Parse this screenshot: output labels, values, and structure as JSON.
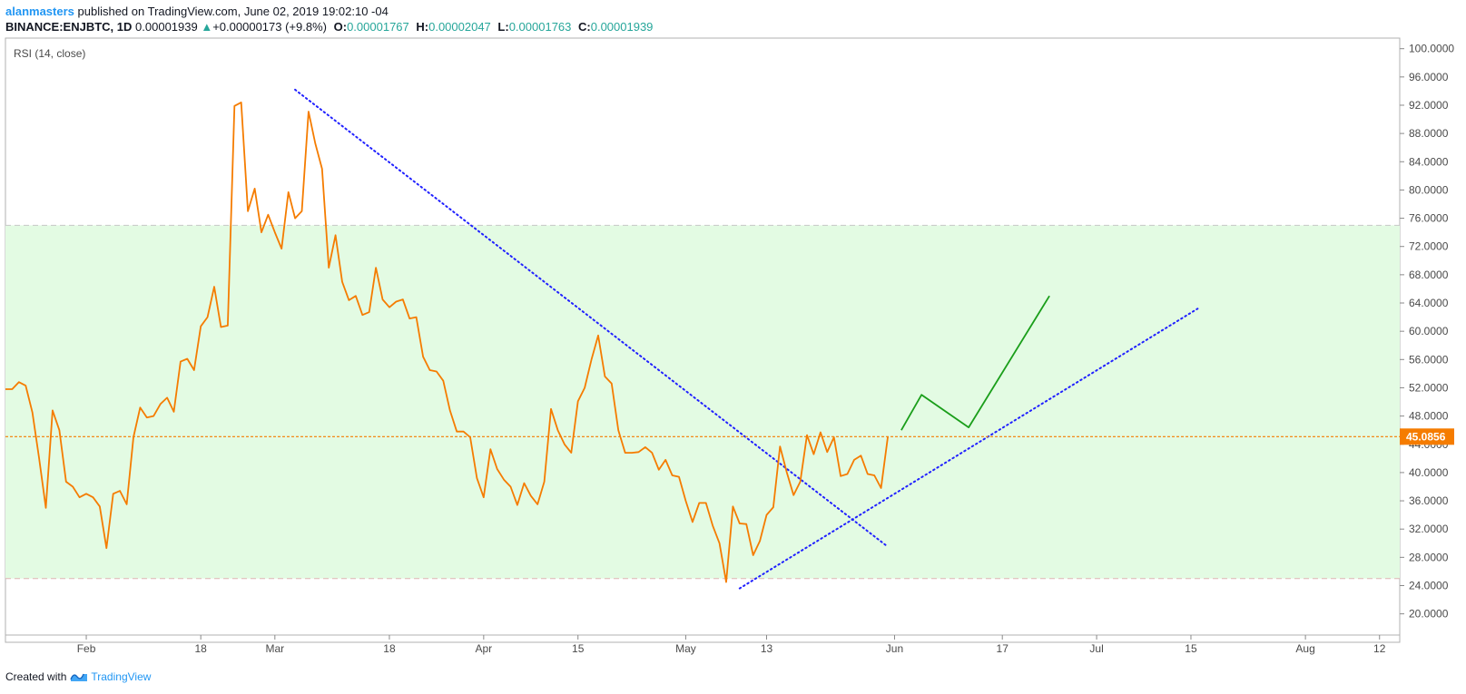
{
  "header": {
    "author": "alanmasters",
    "published": " published on TradingView.com, June 02, 2019 19:02:10 -04",
    "symbol": "BINANCE:ENJBTC, 1D",
    "price": "0.00001939",
    "change": "+0.00000173 (+9.8%)",
    "o_label": "O:",
    "o_value": "0.00001767",
    "h_label": "H:",
    "h_value": "0.00002047",
    "l_label": "L:",
    "l_value": "0.00001763",
    "c_label": "C:",
    "c_value": "0.00001939"
  },
  "footer": {
    "created_with": "Created with",
    "brand": "TradingView"
  },
  "colors": {
    "rsi_line": "#f57c00",
    "band_fill": "#e3fbe3",
    "band_border": "#c8c8c8",
    "trendline": "#2020ff",
    "projection": "#1a9e1a",
    "current_tag": "#f57c00",
    "up": "#26a69a"
  },
  "chart_data": {
    "type": "line",
    "indicator_label": "RSI (14, close)",
    "ylim": [
      17,
      101.5
    ],
    "y_ticks": [
      "100.0000",
      "96.0000",
      "92.0000",
      "88.0000",
      "84.0000",
      "80.0000",
      "76.0000",
      "72.0000",
      "68.0000",
      "64.0000",
      "60.0000",
      "56.0000",
      "52.0000",
      "48.0000",
      "44.0000",
      "40.0000",
      "36.0000",
      "32.0000",
      "28.0000",
      "24.0000",
      "20.0000"
    ],
    "x_range": [
      "2019-01-20",
      "2019-08-15"
    ],
    "x_ticks": [
      {
        "date": "2019-02-01",
        "label": "Feb"
      },
      {
        "date": "2019-02-18",
        "label": "18"
      },
      {
        "date": "2019-03-01",
        "label": "Mar"
      },
      {
        "date": "2019-03-18",
        "label": "18"
      },
      {
        "date": "2019-04-01",
        "label": "Apr"
      },
      {
        "date": "2019-04-15",
        "label": "15"
      },
      {
        "date": "2019-05-01",
        "label": "May"
      },
      {
        "date": "2019-05-13",
        "label": "13"
      },
      {
        "date": "2019-06-01",
        "label": "Jun"
      },
      {
        "date": "2019-06-17",
        "label": "17"
      },
      {
        "date": "2019-07-01",
        "label": "Jul"
      },
      {
        "date": "2019-07-15",
        "label": "15"
      },
      {
        "date": "2019-08-01",
        "label": "Aug"
      },
      {
        "date": "2019-08-12",
        "label": "12"
      }
    ],
    "band": {
      "upper": 75,
      "lower": 25
    },
    "current_value": 45.0856,
    "current_label": "45.0856",
    "series": [
      {
        "x_start": "2019-01-20",
        "values": [
          51.8,
          51.8,
          52.8,
          52.3,
          48.5,
          42,
          35,
          48.8,
          46,
          38.7,
          38,
          36.5,
          37,
          36.5,
          35.2,
          29.3,
          37,
          37.4,
          35.5,
          45,
          49.2,
          47.8,
          48,
          49.7,
          50.6,
          48.6,
          55.7,
          56.1,
          54.5,
          60.7,
          62,
          66.3,
          60.6,
          60.8,
          91.9,
          92.4,
          77,
          80.2,
          74,
          76.5,
          74,
          71.7,
          79.7,
          76,
          77,
          91.1,
          86.6,
          83,
          69,
          73.6,
          67,
          64.4,
          65,
          62.3,
          62.7,
          69,
          64.5,
          63.4,
          64.2,
          64.5,
          61.8,
          62,
          56.4,
          54.5,
          54.3,
          53,
          48.8,
          45.8,
          45.8,
          45,
          39.2,
          36.5,
          43.3,
          40.5,
          39,
          38,
          35.4,
          38.5,
          36.7,
          35.5,
          38.7,
          49,
          46,
          44,
          42.8,
          50.1,
          52,
          56,
          59.4,
          53.6,
          52.6,
          46,
          42.8,
          42.8,
          42.9,
          43.6,
          42.8,
          40.4,
          41.8,
          39.6,
          39.4,
          36,
          33,
          35.7,
          35.7,
          32.5,
          30,
          24.5,
          35.2,
          32.8,
          32.7,
          28.3,
          30.3,
          34,
          35.1,
          43.7,
          40,
          36.8,
          38.7,
          45.3,
          42.6,
          45.7,
          42.9,
          45,
          39.5,
          39.8,
          41.8,
          42.4,
          39.8,
          39.6,
          37.8,
          45.1
        ]
      }
    ],
    "downtrend": {
      "from": [
        "2019-03-04",
        94.2
      ],
      "to": [
        "2019-05-31",
        29.5
      ]
    },
    "uptrend": {
      "from": [
        "2019-05-09",
        23.6
      ],
      "to": [
        "2019-07-16",
        63.2
      ]
    },
    "projection": [
      [
        "2019-06-02",
        46
      ],
      [
        "2019-06-05",
        51
      ],
      [
        "2019-06-12",
        46.4
      ],
      [
        "2019-06-24",
        65
      ]
    ]
  }
}
